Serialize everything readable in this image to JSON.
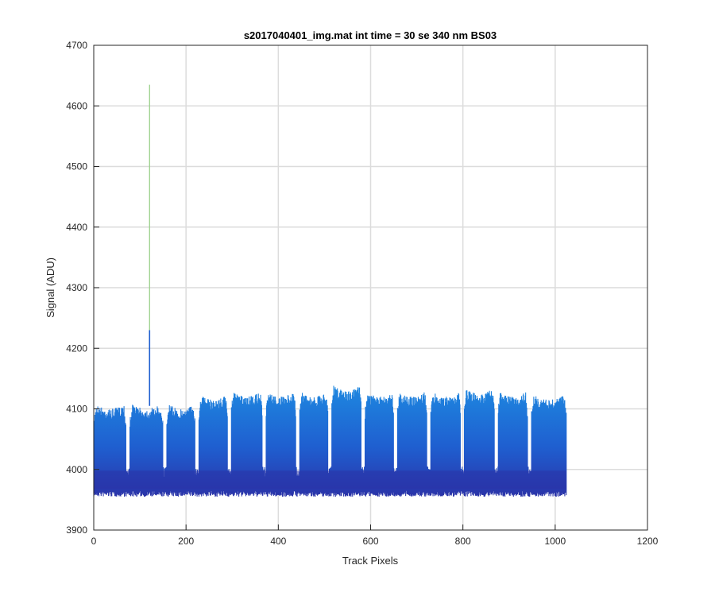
{
  "chart_data": {
    "type": "line",
    "title": "s2017040401_img.mat int time = 30 se  340 nm BS03",
    "xlabel": "Track Pixels",
    "ylabel": "Signal (ADU)",
    "xlim": [
      0,
      1200
    ],
    "ylim": [
      3900,
      4700
    ],
    "xticks": [
      "0",
      "200",
      "400",
      "600",
      "800",
      "1000",
      "1200"
    ],
    "yticks": [
      "3900",
      "4000",
      "4100",
      "4200",
      "4300",
      "4400",
      "4500",
      "4600",
      "4700"
    ],
    "grid": true,
    "x_range": [
      0,
      1024
    ],
    "baseline_low": 3965,
    "baseline_dense": 3990,
    "segments": [
      {
        "x": [
          0,
          70
        ],
        "top": 4110,
        "dip": 4000
      },
      {
        "x": [
          78,
          150
        ],
        "top": 4110,
        "dip": 4005
      },
      {
        "x": [
          158,
          220
        ],
        "top": 4110,
        "dip": 4005
      },
      {
        "x": [
          228,
          290
        ],
        "top": 4125,
        "dip": 4005
      },
      {
        "x": [
          298,
          365
        ],
        "top": 4130,
        "dip": 4005
      },
      {
        "x": [
          373,
          438
        ],
        "top": 4130,
        "dip": 4005
      },
      {
        "x": [
          446,
          508
        ],
        "top": 4130,
        "dip": 4005
      },
      {
        "x": [
          516,
          580
        ],
        "top": 4140,
        "dip": 4005
      },
      {
        "x": [
          588,
          650
        ],
        "top": 4130,
        "dip": 4005
      },
      {
        "x": [
          658,
          722
        ],
        "top": 4130,
        "dip": 4005
      },
      {
        "x": [
          730,
          795
        ],
        "top": 4130,
        "dip": 4005
      },
      {
        "x": [
          803,
          868
        ],
        "top": 4135,
        "dip": 4005
      },
      {
        "x": [
          876,
          940
        ],
        "top": 4130,
        "dip": 4005
      },
      {
        "x": [
          948,
          1024
        ],
        "top": 4125,
        "dip": 4000
      }
    ],
    "spike": {
      "x": 121,
      "y": 4635
    },
    "colors": {
      "top": "#1e88e0",
      "mid": "#1f5fd0",
      "bottom": "#2a33a8",
      "spike_top": "#9ad08a"
    }
  }
}
